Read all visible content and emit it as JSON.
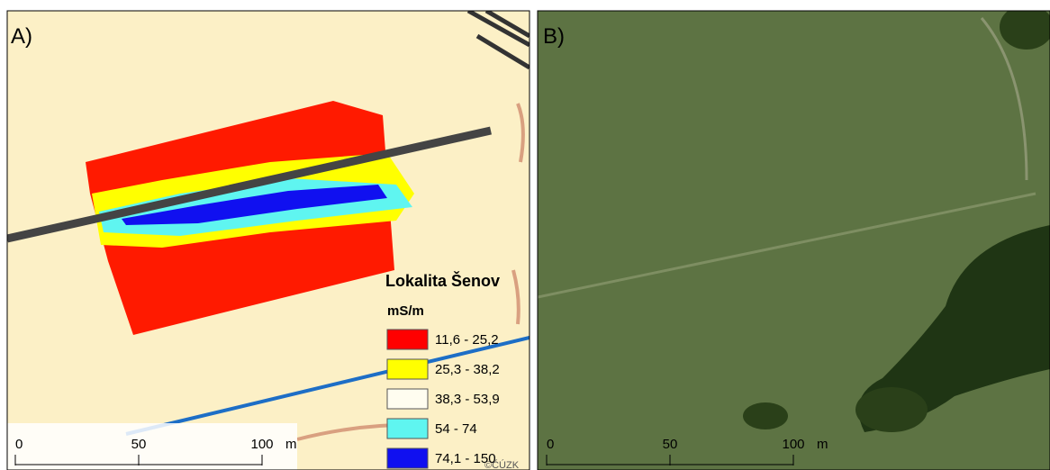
{
  "panels": [
    {
      "label": "A)",
      "legend": {
        "title": "Lokalita Šenov",
        "unit": "mS/m",
        "items": [
          {
            "label": "11,6 - 25,2",
            "color": "#ff0000"
          },
          {
            "label": "25,3 - 38,2",
            "color": "#ffff00"
          },
          {
            "label": "38,3 - 53,9",
            "color": "#fffdf0"
          },
          {
            "label": "54 - 74",
            "color": "#5ff5f0"
          },
          {
            "label": "74,1 - 150",
            "color": "#1010f0"
          }
        ]
      },
      "scale": {
        "ticks": [
          0,
          50,
          100
        ],
        "unit": "m"
      },
      "credit": "©ČÚZK"
    },
    {
      "label": "B)",
      "scale": {
        "ticks": [
          0,
          50,
          100
        ],
        "unit": "m"
      }
    }
  ]
}
